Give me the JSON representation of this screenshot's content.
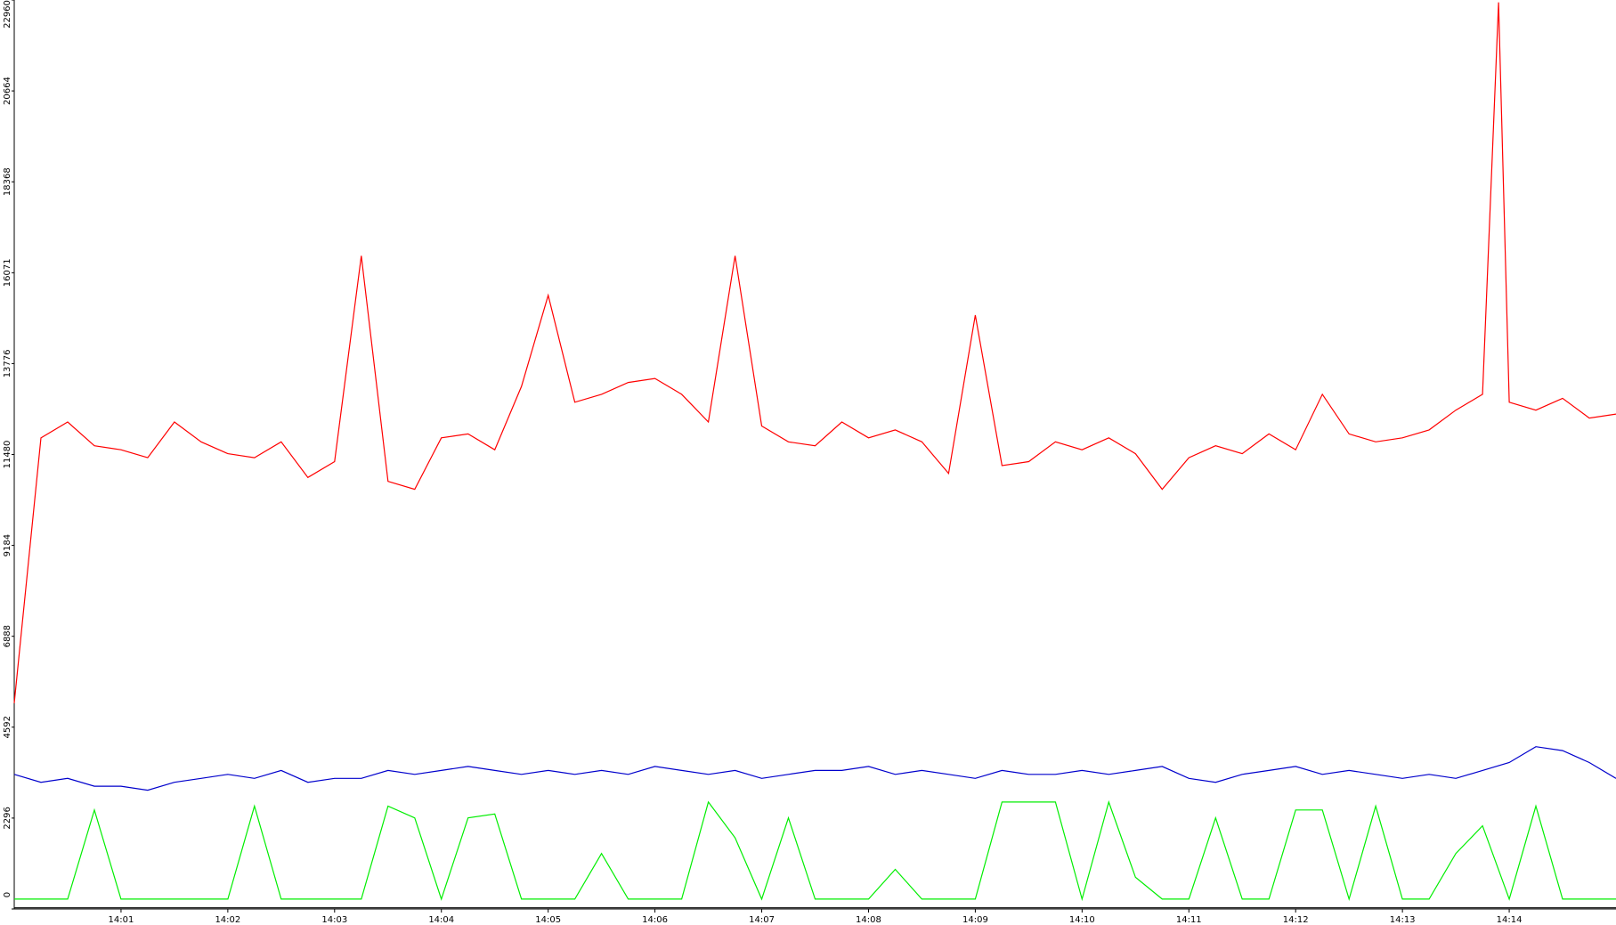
{
  "chart_data": {
    "type": "line",
    "x": [
      840,
      840.25,
      840.5,
      840.75,
      841,
      841.25,
      841.5,
      841.75,
      842,
      842.25,
      842.5,
      842.75,
      843,
      843.25,
      843.5,
      843.75,
      844,
      844.25,
      844.5,
      844.75,
      845,
      845.25,
      845.5,
      845.75,
      846,
      846.25,
      846.5,
      846.75,
      847,
      847.25,
      847.5,
      847.75,
      848,
      848.25,
      848.5,
      848.75,
      849,
      849.25,
      849.5,
      849.75,
      850,
      850.25,
      850.5,
      850.75,
      851,
      851.25,
      851.5,
      851.75,
      852,
      852.25,
      852.5,
      852.75,
      853,
      853.25,
      853.5,
      853.75,
      854,
      854.25,
      854.5,
      854.75,
      855
    ],
    "xlim": [
      840,
      855
    ],
    "xticks": [
      {
        "value": 841,
        "label": "14:01"
      },
      {
        "value": 842,
        "label": "14:02"
      },
      {
        "value": 843,
        "label": "14:03"
      },
      {
        "value": 844,
        "label": "14:04"
      },
      {
        "value": 845,
        "label": "14:05"
      },
      {
        "value": 846,
        "label": "14:06"
      },
      {
        "value": 847,
        "label": "14:07"
      },
      {
        "value": 848,
        "label": "14:08"
      },
      {
        "value": 849,
        "label": "14:09"
      },
      {
        "value": 850,
        "label": "14:10"
      },
      {
        "value": 851,
        "label": "14:11"
      },
      {
        "value": 852,
        "label": "14:12"
      },
      {
        "value": 853,
        "label": "14:13"
      },
      {
        "value": 854,
        "label": "14:14"
      }
    ],
    "ylim": [
      0,
      22960
    ],
    "yticks": [
      0,
      2296,
      4592,
      6888,
      9184,
      11480,
      13776,
      16071,
      18368,
      20664,
      22960
    ],
    "series": [
      {
        "color": "#ff0000",
        "x": [
          840,
          840.25,
          840.5,
          840.75,
          841,
          841.25,
          841.5,
          841.75,
          842,
          842.25,
          842.5,
          842.75,
          843,
          843.25,
          843.5,
          843.75,
          844,
          844.25,
          844.5,
          844.75,
          845,
          845.25,
          845.5,
          845.75,
          846,
          846.25,
          846.5,
          846.75,
          847,
          847.25,
          847.5,
          847.75,
          848,
          848.25,
          848.5,
          848.75,
          849,
          849.25,
          849.5,
          849.75,
          850,
          850.25,
          850.5,
          850.75,
          851,
          851.25,
          851.5,
          851.75,
          852,
          852.25,
          852.5,
          852.75,
          853,
          853.25,
          853.5,
          853.75,
          853.9,
          854,
          854.25,
          854.5,
          854.75,
          855
        ],
        "values": [
          5200,
          11900,
          12300,
          11700,
          11600,
          11400,
          12300,
          11800,
          11500,
          11400,
          11800,
          10900,
          11300,
          16500,
          10800,
          10600,
          11900,
          12000,
          11600,
          13200,
          15500,
          12800,
          13000,
          13300,
          13400,
          13000,
          12300,
          16500,
          12200,
          11800,
          11700,
          12300,
          11900,
          12100,
          11800,
          11000,
          15000,
          11200,
          11300,
          11800,
          11600,
          11900,
          11500,
          10600,
          11400,
          11700,
          11500,
          12000,
          11600,
          13000,
          12000,
          11800,
          11900,
          12100,
          12600,
          13000,
          22900,
          12800,
          12600,
          12900,
          12400,
          12500
        ]
      },
      {
        "color": "#0000cc",
        "values": [
          3400,
          3200,
          3300,
          3100,
          3100,
          3000,
          3200,
          3300,
          3400,
          3300,
          3500,
          3200,
          3300,
          3300,
          3500,
          3400,
          3500,
          3600,
          3500,
          3400,
          3500,
          3400,
          3500,
          3400,
          3600,
          3500,
          3400,
          3500,
          3300,
          3400,
          3500,
          3500,
          3600,
          3400,
          3500,
          3400,
          3300,
          3500,
          3400,
          3400,
          3500,
          3400,
          3500,
          3600,
          3300,
          3200,
          3400,
          3500,
          3600,
          3400,
          3500,
          3400,
          3300,
          3400,
          3300,
          3500,
          3700,
          4100,
          4000,
          3700,
          3300
        ]
      },
      {
        "color": "#00ee00",
        "values": [
          250,
          250,
          250,
          2500,
          250,
          250,
          250,
          250,
          250,
          2600,
          250,
          250,
          250,
          250,
          2600,
          2300,
          250,
          2300,
          2400,
          250,
          250,
          250,
          1400,
          250,
          250,
          250,
          2700,
          1800,
          250,
          2300,
          250,
          250,
          250,
          1000,
          250,
          250,
          250,
          2700,
          2700,
          2700,
          250,
          2700,
          800,
          250,
          250,
          2300,
          250,
          250,
          2500,
          2500,
          250,
          2600,
          250,
          250,
          1400,
          2100,
          250,
          2600,
          250,
          250,
          250
        ]
      },
      {
        "color": "#000000",
        "values": [
          30,
          30,
          30,
          30,
          30,
          30,
          30,
          30,
          30,
          30,
          30,
          30,
          30,
          30,
          30,
          30,
          30,
          30,
          30,
          30,
          30,
          30,
          30,
          30,
          30,
          30,
          30,
          30,
          30,
          30,
          30,
          30,
          30,
          30,
          30,
          30,
          30,
          30,
          30,
          30,
          30,
          30,
          30,
          30,
          30,
          30,
          30,
          30,
          30,
          30,
          30,
          30,
          30,
          30,
          30,
          30,
          30,
          30,
          30,
          30,
          30
        ]
      }
    ]
  }
}
